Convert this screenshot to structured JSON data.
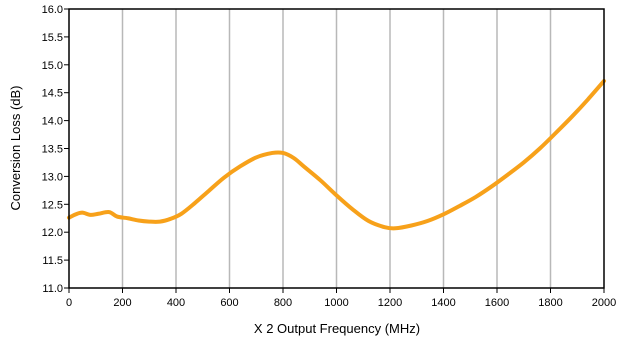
{
  "chart_data": {
    "type": "line",
    "title": "",
    "xlabel": "X 2 Output Frequency (MHz)",
    "ylabel": "Conversion Loss (dB)",
    "xlim": [
      0,
      2000
    ],
    "ylim": [
      11.0,
      16.0
    ],
    "x_ticks": [
      "0",
      "200",
      "400",
      "600",
      "800",
      "1000",
      "1200",
      "1400",
      "1600",
      "1800",
      "2000"
    ],
    "y_ticks": [
      "11.0",
      "11.5",
      "12.0",
      "12.5",
      "13.0",
      "13.5",
      "14.0",
      "14.5",
      "15.0",
      "15.5",
      "16.0"
    ],
    "grid": "vertical",
    "legend": "none",
    "series": [
      {
        "color": "#f7a11a",
        "x": [
          0,
          25,
          50,
          80,
          110,
          150,
          180,
          220,
          260,
          300,
          340,
          380,
          420,
          470,
          520,
          580,
          640,
          700,
          760,
          800,
          840,
          880,
          940,
          1000,
          1060,
          1120,
          1180,
          1220,
          1280,
          1340,
          1400,
          1460,
          1520,
          1580,
          1640,
          1700,
          1760,
          1820,
          1880,
          1940,
          2000
        ],
        "y": [
          12.26,
          12.32,
          12.35,
          12.31,
          12.33,
          12.36,
          12.28,
          12.25,
          12.21,
          12.19,
          12.19,
          12.24,
          12.33,
          12.52,
          12.73,
          12.98,
          13.18,
          13.34,
          13.42,
          13.42,
          13.33,
          13.17,
          12.93,
          12.66,
          12.41,
          12.2,
          12.09,
          12.07,
          12.12,
          12.2,
          12.32,
          12.47,
          12.63,
          12.82,
          13.03,
          13.25,
          13.5,
          13.78,
          14.07,
          14.38,
          14.71
        ]
      }
    ]
  }
}
